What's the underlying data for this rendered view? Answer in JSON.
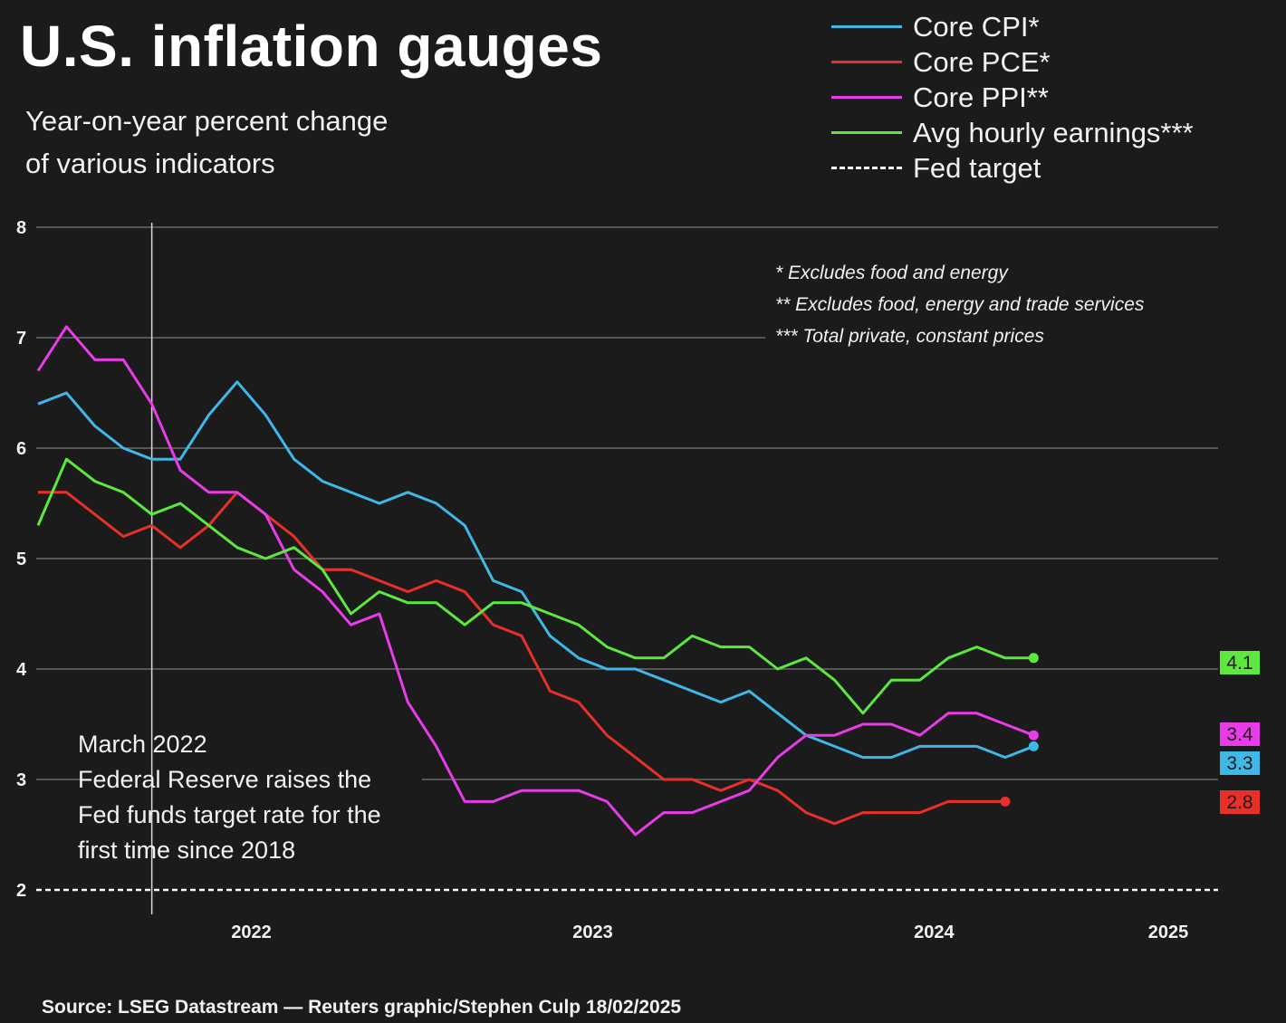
{
  "title": "U.S. inflation gauges",
  "subtitle_line1": "Year-on-year percent change",
  "subtitle_line2": "of various indicators",
  "legend": [
    {
      "label": "Core CPI*",
      "color": "#3fb8e8",
      "style": "solid"
    },
    {
      "label": "Core PCE*",
      "color": "#e8302a",
      "style": "solid"
    },
    {
      "label": "Core PPI**",
      "color": "#e83ce8",
      "style": "solid"
    },
    {
      "label": "Avg hourly earnings***",
      "color": "#5ce83c",
      "style": "solid"
    },
    {
      "label": "Fed target",
      "color": "#ffffff",
      "style": "dashed"
    }
  ],
  "footnotes": [
    "* Excludes food and energy",
    "** Excludes food, energy and trade services",
    "*** Total private, constant prices"
  ],
  "annotation": {
    "line1": "March 2022",
    "line2": "Federal Reserve raises the",
    "line3": "Fed funds target rate for the",
    "line4": "first time since 2018"
  },
  "source": "Source: LSEG Datastream — Reuters graphic/Stephen Culp 18/02/2025",
  "chart_data": {
    "type": "line",
    "ylim": [
      2,
      8
    ],
    "yticks": [
      2,
      3,
      4,
      5,
      6,
      7,
      8
    ],
    "x_tick_labels": [
      "2022",
      "2023",
      "2024",
      "2025"
    ],
    "x_start": "2021-11",
    "x_end": "2025-02",
    "grid": true,
    "fed_target": 2,
    "march_2022_marker": "2022-03",
    "series": [
      {
        "name": "Core CPI*",
        "color": "#3fb8e8",
        "start": "2021-11",
        "values": [
          6.4,
          6.5,
          6.2,
          6.0,
          5.9,
          5.9,
          6.3,
          6.6,
          6.3,
          5.9,
          5.7,
          5.6,
          5.5,
          5.6,
          5.5,
          5.3,
          4.8,
          4.7,
          4.3,
          4.1,
          4.0,
          4.0,
          3.9,
          3.8,
          3.7,
          3.8,
          3.6,
          3.4,
          3.3,
          3.2,
          3.2,
          3.3,
          3.3,
          3.3,
          3.2,
          3.3
        ],
        "end_label": "3.3"
      },
      {
        "name": "Core PCE*",
        "color": "#e8302a",
        "start": "2021-11",
        "values": [
          5.6,
          5.6,
          5.4,
          5.2,
          5.3,
          5.1,
          5.3,
          5.6,
          5.4,
          5.2,
          4.9,
          4.9,
          4.8,
          4.7,
          4.8,
          4.7,
          4.4,
          4.3,
          3.8,
          3.7,
          3.4,
          3.2,
          3.0,
          3.0,
          2.9,
          3.0,
          2.9,
          2.7,
          2.6,
          2.7,
          2.7,
          2.7,
          2.8,
          2.8,
          2.8
        ],
        "end_label": "2.8"
      },
      {
        "name": "Core PPI**",
        "color": "#e83ce8",
        "start": "2021-11",
        "values": [
          6.7,
          7.1,
          6.8,
          6.8,
          6.4,
          5.8,
          5.6,
          5.6,
          5.4,
          4.9,
          4.7,
          4.4,
          4.5,
          3.7,
          3.3,
          2.8,
          2.8,
          2.9,
          2.9,
          2.9,
          2.8,
          2.5,
          2.7,
          2.7,
          2.8,
          2.9,
          3.2,
          3.4,
          3.4,
          3.5,
          3.5,
          3.4,
          3.6,
          3.6,
          3.5,
          3.4
        ],
        "end_label": "3.4"
      },
      {
        "name": "Avg hourly earnings***",
        "color": "#5ce83c",
        "start": "2021-11",
        "values": [
          5.3,
          5.9,
          5.7,
          5.6,
          5.4,
          5.5,
          5.3,
          5.1,
          5.0,
          5.1,
          4.9,
          4.5,
          4.7,
          4.6,
          4.6,
          4.4,
          4.6,
          4.6,
          4.5,
          4.4,
          4.2,
          4.1,
          4.1,
          4.3,
          4.2,
          4.2,
          4.0,
          4.1,
          3.9,
          3.6,
          3.9,
          3.9,
          4.1,
          4.2,
          4.1,
          4.1
        ],
        "end_label": "4.1"
      }
    ]
  }
}
